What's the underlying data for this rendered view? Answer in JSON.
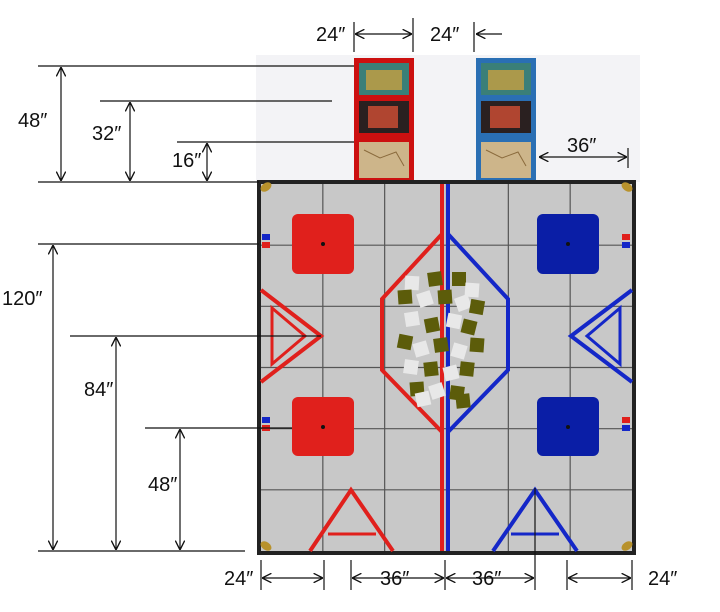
{
  "colors": {
    "red": "#e0201c",
    "blue": "#1427c8",
    "dark_red": "#d80e14",
    "dark_blue": "#0a1ea6",
    "field_gray": "#c8c8c8",
    "grid": "#555555",
    "olive": "#5c5c0a",
    "light_tile": "#e8e8e8",
    "frame": "#222222"
  },
  "dimensions": {
    "top_left": "24″",
    "top_right": "24″",
    "left_48": "48″",
    "left_32": "32″",
    "left_16": "16″",
    "right_36": "36″",
    "left_120": "120″",
    "left_84": "84″",
    "left_48_lower": "48″",
    "bottom_24_left": "24″",
    "bottom_36_left": "36″",
    "bottom_36_right": "36″",
    "bottom_24_right": "24″"
  },
  "towers": [
    {
      "name": "red-tower",
      "frame_color": "#cc1010",
      "panels": [
        "creature-art-icon",
        "creature-art-icon",
        "map-art-icon"
      ]
    },
    {
      "name": "blue-tower",
      "frame_color": "#2a6fb4",
      "panels": [
        "creature-art-icon",
        "creature-art-icon",
        "map-art-icon"
      ]
    }
  ]
}
